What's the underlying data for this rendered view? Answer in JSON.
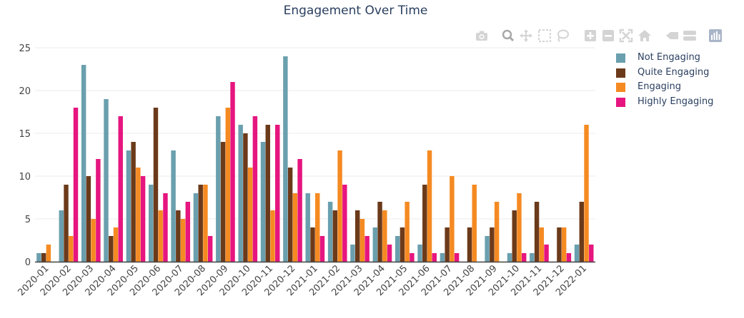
{
  "chart_data": {
    "type": "bar",
    "title": "Engagement Over Time",
    "xlabel": "",
    "ylabel": "",
    "ylim": [
      0,
      25
    ],
    "yticks": [
      "0",
      "5",
      "10",
      "15",
      "20",
      "25"
    ],
    "grid": true,
    "legend_position": "top-right",
    "categories": [
      "2020-01",
      "2020-02",
      "2020-03",
      "2020-04",
      "2020-05",
      "2020-06",
      "2020-07",
      "2020-08",
      "2020-09",
      "2020-10",
      "2020-11",
      "2020-12",
      "2021-01",
      "2021-02",
      "2021-03",
      "2021-04",
      "2021-05",
      "2021-06",
      "2021-07",
      "2021-08",
      "2021-09",
      "2021-10",
      "2021-11",
      "2021-12",
      "2022-01"
    ],
    "series": [
      {
        "name": "Not Engaging",
        "color": "#6a9fae",
        "values": [
          1,
          6,
          23,
          19,
          13,
          9,
          13,
          8,
          17,
          16,
          14,
          24,
          8,
          7,
          2,
          4,
          3,
          2,
          1,
          0,
          3,
          1,
          1,
          0,
          2
        ]
      },
      {
        "name": "Quite Engaging",
        "color": "#6b3a1a",
        "values": [
          1,
          9,
          10,
          3,
          14,
          18,
          6,
          9,
          14,
          15,
          16,
          11,
          4,
          6,
          6,
          7,
          4,
          9,
          4,
          4,
          4,
          6,
          7,
          4,
          7
        ]
      },
      {
        "name": "Engaging",
        "color": "#f58a22",
        "values": [
          2,
          3,
          5,
          4,
          11,
          6,
          5,
          9,
          18,
          11,
          6,
          8,
          8,
          13,
          5,
          6,
          7,
          13,
          10,
          9,
          7,
          8,
          4,
          4,
          16
        ]
      },
      {
        "name": "Highly Engaging",
        "color": "#e6157f",
        "values": [
          0,
          18,
          12,
          17,
          10,
          8,
          7,
          3,
          21,
          17,
          16,
          12,
          3,
          9,
          3,
          2,
          1,
          1,
          1,
          0,
          0,
          1,
          2,
          1,
          2
        ]
      }
    ]
  },
  "modebar": {
    "icons": [
      "camera-icon",
      "zoom-icon",
      "pan-icon",
      "box-select-icon",
      "lasso-select-icon",
      "zoom-in-icon",
      "zoom-out-icon",
      "autoscale-icon",
      "reset-axes-icon",
      "spike-lines-icon",
      "compare-data-icon",
      "plotly-logo-icon"
    ]
  }
}
